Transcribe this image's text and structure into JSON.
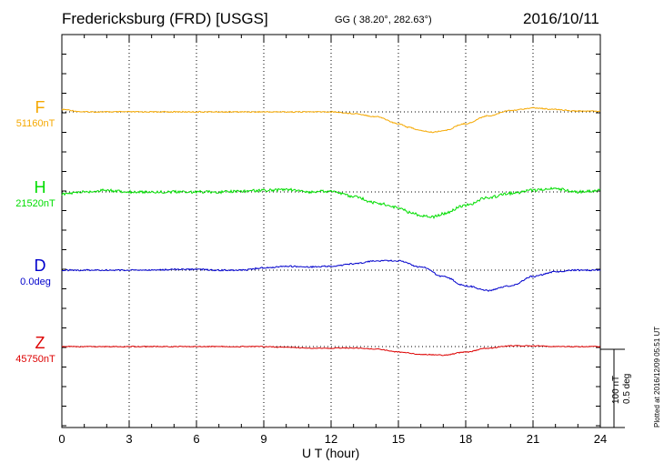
{
  "header": {
    "title": "Fredericksburg (FRD)  [USGS]",
    "coords": "GG ( 38.20°, 282.63°)",
    "date": "2016/10/11"
  },
  "footer": {
    "plotted": "Plotted at 2016/12/09 05:51  UT"
  },
  "scale": {
    "nT_label": "100 nT",
    "deg_label": "0.5 deg"
  },
  "components": [
    {
      "letter": "F",
      "baseline": "51160nT",
      "color": "#f5a800"
    },
    {
      "letter": "H",
      "baseline": "21520nT",
      "color": "#00dd00"
    },
    {
      "letter": "D",
      "baseline": "0.0deg",
      "color": "#0000cc"
    },
    {
      "letter": "Z",
      "baseline": "45750nT",
      "color": "#dd0000"
    }
  ],
  "chart_data": {
    "type": "line",
    "xlabel": "U T (hour)",
    "xlim": [
      0,
      24
    ],
    "xticks": [
      "0",
      "3",
      "6",
      "9",
      "12",
      "15",
      "18",
      "21",
      "24"
    ],
    "grid": true,
    "series": [
      {
        "name": "F",
        "unit": "nT",
        "x": [
          0,
          1,
          2,
          3,
          4,
          5,
          6,
          7,
          8,
          9,
          10,
          11,
          12,
          13,
          14,
          15,
          15.5,
          16,
          16.5,
          17,
          18,
          19,
          20,
          21,
          22,
          23,
          24
        ],
        "y": [
          -3,
          0,
          0,
          0,
          0,
          0,
          0,
          0,
          0,
          0,
          0,
          0,
          0,
          2,
          6,
          15,
          20,
          24,
          26,
          24,
          15,
          5,
          -2,
          -5,
          -3,
          -1,
          -1
        ]
      },
      {
        "name": "H",
        "unit": "nT",
        "x": [
          0,
          1,
          2,
          3,
          4,
          5,
          6,
          7,
          8,
          9,
          10,
          11,
          12,
          13,
          14,
          15,
          15.5,
          16,
          16.5,
          17,
          18,
          19,
          20,
          21,
          22,
          23,
          24
        ],
        "y": [
          3,
          0,
          -2,
          0,
          0,
          0,
          0,
          0,
          -1,
          -2,
          -3,
          0,
          -1,
          6,
          14,
          20,
          26,
          30,
          32,
          28,
          17,
          7,
          2,
          -2,
          -4,
          0,
          -2
        ]
      },
      {
        "name": "D",
        "unit": "deg",
        "x": [
          0,
          1,
          2,
          3,
          4,
          5,
          6,
          7,
          8,
          9,
          10,
          11,
          12,
          13,
          14,
          15,
          16,
          17,
          18,
          19,
          20,
          21,
          22,
          23,
          24
        ],
        "y": [
          0,
          0,
          0,
          0,
          0,
          -0.005,
          -0.005,
          0,
          0,
          -0.015,
          -0.025,
          -0.02,
          -0.025,
          -0.04,
          -0.06,
          -0.06,
          -0.02,
          0.04,
          0.1,
          0.13,
          0.1,
          0.04,
          0.01,
          0,
          0
        ]
      },
      {
        "name": "Z",
        "unit": "nT",
        "x": [
          0,
          1,
          2,
          3,
          4,
          5,
          6,
          7,
          8,
          9,
          10,
          11,
          12,
          13,
          14,
          15,
          16,
          17,
          18,
          19,
          20,
          21,
          22,
          23,
          24
        ],
        "y": [
          0,
          0,
          0,
          0,
          0,
          0,
          0,
          0,
          0,
          0,
          1,
          2,
          2,
          2,
          3,
          7,
          10,
          11,
          7,
          2,
          -1,
          -1,
          0,
          0,
          0
        ]
      }
    ]
  }
}
